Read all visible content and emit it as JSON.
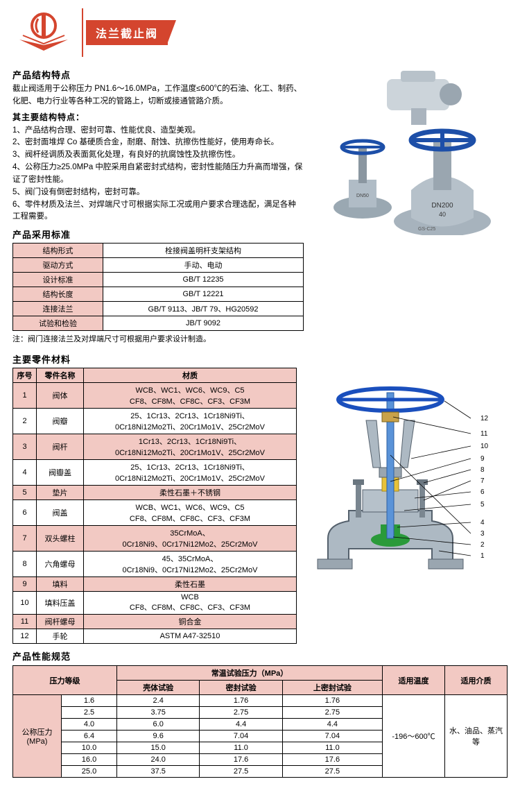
{
  "colors": {
    "brand": "#d4452e",
    "pink": "#f2c9c3",
    "border": "#000000",
    "text": "#000000",
    "white": "#ffffff"
  },
  "header": {
    "title": "法兰截止阀"
  },
  "sections": {
    "features_title": "产品结构特点",
    "intro": "截止阀适用于公称压力 PN1.6～16.0MPa，工作温度≤600℃的石油、化工、制药、化肥、电力行业等各种工况的管路上，切断或接通管路介质。",
    "main_features_title": "其主要结构特点：",
    "features": [
      "1、产品结构合理、密封可靠、性能优良、造型美观。",
      "2、密封面堆焊 Co 基硬质合金，耐磨、耐蚀、抗擦伤性能好，使用寿命长。",
      "3、阀杆经调质及表面氮化处理，有良好的抗腐蚀性及抗擦伤性。",
      "4、公称压力≥25.0MPa 中腔采用自紧密封式结构，密封性能随压力升高而增强，保证了密封性能。",
      "5、阀门设有倒密封结构，密封可靠。",
      "6、零件材质及法兰、对焊端尺寸可根据实际工况或用户要求合理选配，满足各种工程需要。"
    ],
    "standards_title": "产品采用标准",
    "standards_note": "注：阀门连接法兰及对焊端尺寸可根据用户要求设计制造。",
    "parts_title": "主要零件材料",
    "perf_title": "产品性能规范"
  },
  "standards": {
    "rows": [
      {
        "label": "结构形式",
        "value": "栓接阀盖明杆支架结构"
      },
      {
        "label": "驱动方式",
        "value": "手动、电动"
      },
      {
        "label": "设计标准",
        "value": "GB/T 12235"
      },
      {
        "label": "结构长度",
        "value": "GB/T 12221"
      },
      {
        "label": "连接法兰",
        "value": "GB/T 9113、JB/T 79、HG20592"
      },
      {
        "label": "试验和检验",
        "value": "JB/T 9092"
      }
    ]
  },
  "parts": {
    "headers": [
      "序号",
      "零件名称",
      "材质"
    ],
    "rows": [
      {
        "n": "1",
        "name": "阀体",
        "mat": "WCB、WC1、WC6、WC9、C5\nCF8、CF8M、CF8C、CF3、CF3M"
      },
      {
        "n": "2",
        "name": "阀瓣",
        "mat": "25、1Cr13、2Cr13、1Cr18Ni9Ti、\n0Cr18Ni12Mo2Ti、20Cr1Mo1V、25Cr2MoV"
      },
      {
        "n": "3",
        "name": "阀杆",
        "mat": "1Cr13、2Cr13、1Cr18Ni9Ti、\n0Cr18Ni12Mo2Ti、20Cr1Mo1V、25Cr2MoV"
      },
      {
        "n": "4",
        "name": "阀瓣盖",
        "mat": "25、1Cr13、2Cr13、1Cr18Ni9Ti、\n0Cr18Ni12Mo2Ti、20Cr1Mo1V、25Cr2MoV"
      },
      {
        "n": "5",
        "name": "垫片",
        "mat": "柔性石墨＋不锈钢"
      },
      {
        "n": "6",
        "name": "阀盖",
        "mat": "WCB、WC1、WC6、WC9、C5\nCF8、CF8M、CF8C、CF3、CF3M"
      },
      {
        "n": "7",
        "name": "双头螺柱",
        "mat": "35CrMoA、\n0Cr18Ni9、0Cr17Ni12Mo2、25Cr2MoV"
      },
      {
        "n": "8",
        "name": "六角螺母",
        "mat": "45、35CrMoA、\n0Cr18Ni9、0Cr17Ni12Mo2、25Cr2MoV"
      },
      {
        "n": "9",
        "name": "填料",
        "mat": "柔性石墨"
      },
      {
        "n": "10",
        "name": "填料压盖",
        "mat": "WCB\nCF8、CF8M、CF8C、CF3、CF3M"
      },
      {
        "n": "11",
        "name": "阀杆螺母",
        "mat": "铜合金"
      },
      {
        "n": "12",
        "name": "手轮",
        "mat": "ASTM A47-32510"
      }
    ]
  },
  "perf": {
    "col_headers": {
      "pressure": "压力等级",
      "test_group": "常温试验压力（MPa）",
      "shell": "壳体试验",
      "seal": "密封试验",
      "upseal": "上密封试验",
      "temp": "适用温度",
      "medium": "适用介质"
    },
    "row_label": "公称压力\n(MPa)",
    "temp_value": "-196～600℃",
    "medium_value": "水、油品、蒸汽等",
    "rows": [
      {
        "p": "1.6",
        "shell": "2.4",
        "seal": "1.76",
        "upseal": "1.76"
      },
      {
        "p": "2.5",
        "shell": "3.75",
        "seal": "2.75",
        "upseal": "2.75"
      },
      {
        "p": "4.0",
        "shell": "6.0",
        "seal": "4.4",
        "upseal": "4.4"
      },
      {
        "p": "6.4",
        "shell": "9.6",
        "seal": "7.04",
        "upseal": "7.04"
      },
      {
        "p": "10.0",
        "shell": "15.0",
        "seal": "11.0",
        "upseal": "11.0"
      },
      {
        "p": "16.0",
        "shell": "24.0",
        "seal": "17.6",
        "upseal": "17.6"
      },
      {
        "p": "25.0",
        "shell": "37.5",
        "seal": "27.5",
        "upseal": "27.5"
      }
    ]
  },
  "diagram": {
    "callouts": [
      "12",
      "11",
      "10",
      "9",
      "8",
      "7",
      "6",
      "5",
      "4",
      "3",
      "2",
      "1"
    ],
    "stem_color": "#3b7fd4",
    "body_color": "#8aa0b0",
    "seat_color": "#2a9a3a",
    "packing_color": "#e8c23a",
    "wheel_color": "#1a4fbd"
  }
}
